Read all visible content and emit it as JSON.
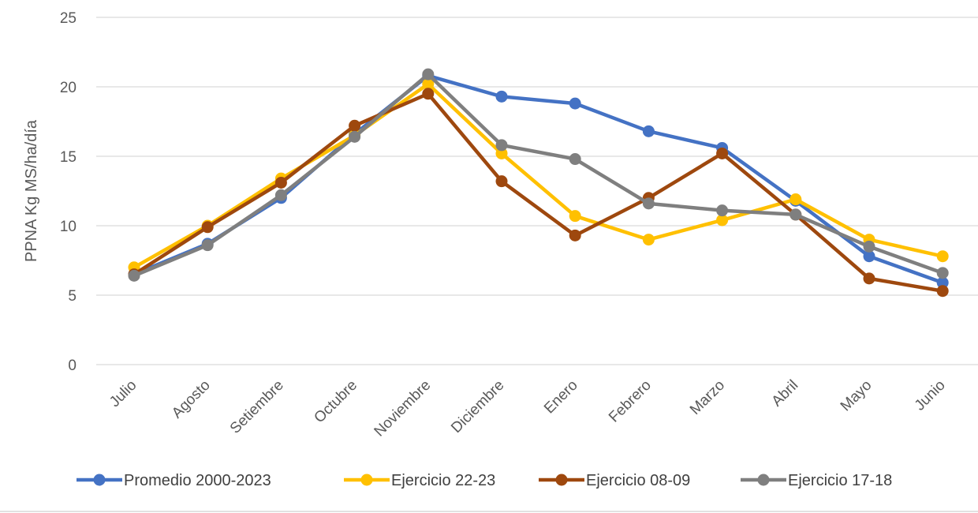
{
  "chart_data": {
    "type": "line",
    "title": "",
    "xlabel": "",
    "ylabel": "PPNA Kg MS/ha/día",
    "ylim": [
      0,
      25
    ],
    "yticks": [
      0,
      5,
      10,
      15,
      20,
      25
    ],
    "grid": true,
    "legend_position": "bottom",
    "categories": [
      "Julio",
      "Agosto",
      "Setiembre",
      "Octubre",
      "Noviembre",
      "Diciembre",
      "Enero",
      "Febrero",
      "Marzo",
      "Abril",
      "Mayo",
      "Junio"
    ],
    "series": [
      {
        "name": "Promedio 2000-2023",
        "color": "#4472C4",
        "values": [
          6.5,
          8.7,
          12.0,
          16.6,
          20.8,
          19.3,
          18.8,
          16.8,
          15.6,
          11.8,
          7.8,
          5.9
        ]
      },
      {
        "name": "Ejercicio 22-23",
        "color": "#FFC000",
        "values": [
          7.0,
          10.0,
          13.4,
          16.5,
          20.2,
          15.2,
          10.7,
          9.0,
          10.4,
          11.9,
          9.0,
          7.8
        ]
      },
      {
        "name": "Ejercicio 08-09",
        "color": "#9E480E",
        "values": [
          6.5,
          9.9,
          13.1,
          17.2,
          19.5,
          13.2,
          9.3,
          12.0,
          15.2,
          10.8,
          6.2,
          5.3
        ]
      },
      {
        "name": "Ejercicio 17-18",
        "color": "#7F7F7F",
        "values": [
          6.4,
          8.6,
          12.2,
          16.4,
          20.9,
          15.8,
          14.8,
          11.6,
          11.1,
          10.8,
          8.5,
          6.6
        ]
      }
    ]
  }
}
